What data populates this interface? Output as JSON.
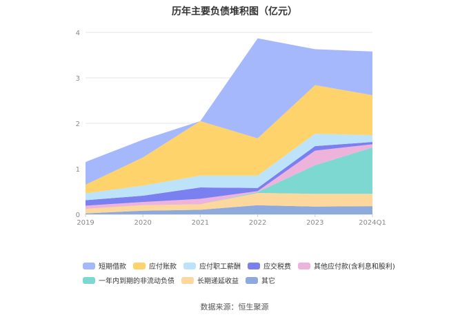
{
  "chart_data": {
    "type": "area",
    "stacked": true,
    "title": "历年主要负债堆积图（亿元）",
    "categories": [
      "2019",
      "2020",
      "2021",
      "2022",
      "2023",
      "2024Q1"
    ],
    "ylim": [
      0,
      4
    ],
    "yticks": [
      "0",
      "1",
      "2",
      "3",
      "4"
    ],
    "grid": true,
    "legend_position": "bottom",
    "series": [
      {
        "name": "其它",
        "color": "#8eaadc",
        "values": [
          0.02,
          0.08,
          0.1,
          0.2,
          0.17,
          0.18
        ]
      },
      {
        "name": "长期递延收益",
        "color": "#fcd89c",
        "values": [
          0.1,
          0.12,
          0.12,
          0.27,
          0.28,
          0.27
        ]
      },
      {
        "name": "一年内到期的非流动负债",
        "color": "#7dd8d2",
        "values": [
          0.0,
          0.0,
          0.0,
          0.02,
          0.63,
          1.02
        ]
      },
      {
        "name": "其他应付款(含利息和股利)",
        "color": "#eeb3db",
        "values": [
          0.07,
          0.07,
          0.12,
          0.02,
          0.32,
          0.07
        ]
      },
      {
        "name": "应交税费",
        "color": "#7a80ef",
        "values": [
          0.12,
          0.14,
          0.25,
          0.07,
          0.1,
          0.05
        ]
      },
      {
        "name": "应付职工薪酬",
        "color": "#bde3fa",
        "values": [
          0.15,
          0.22,
          0.26,
          0.27,
          0.27,
          0.15
        ]
      },
      {
        "name": "应付账款",
        "color": "#ffd36b",
        "values": [
          0.19,
          0.62,
          1.2,
          0.82,
          1.07,
          0.88
        ]
      },
      {
        "name": "短期借款",
        "color": "#a4b8fb",
        "values": [
          0.5,
          0.39,
          0.0,
          2.2,
          0.79,
          0.96
        ]
      }
    ]
  },
  "legend_order": [
    {
      "name": "短期借款",
      "color": "#a4b8fb"
    },
    {
      "name": "应付账款",
      "color": "#ffd36b"
    },
    {
      "name": "应付职工薪酬",
      "color": "#bde3fa"
    },
    {
      "name": "应交税费",
      "color": "#7a80ef"
    },
    {
      "name": "其他应付款(含利息和股利)",
      "color": "#eeb3db"
    },
    {
      "name": "一年内到期的非流动负债",
      "color": "#7dd8d2"
    },
    {
      "name": "长期递延收益",
      "color": "#fcd89c"
    },
    {
      "name": "其它",
      "color": "#8eaadc"
    }
  ],
  "source_text": "数据来源：恒生聚源"
}
